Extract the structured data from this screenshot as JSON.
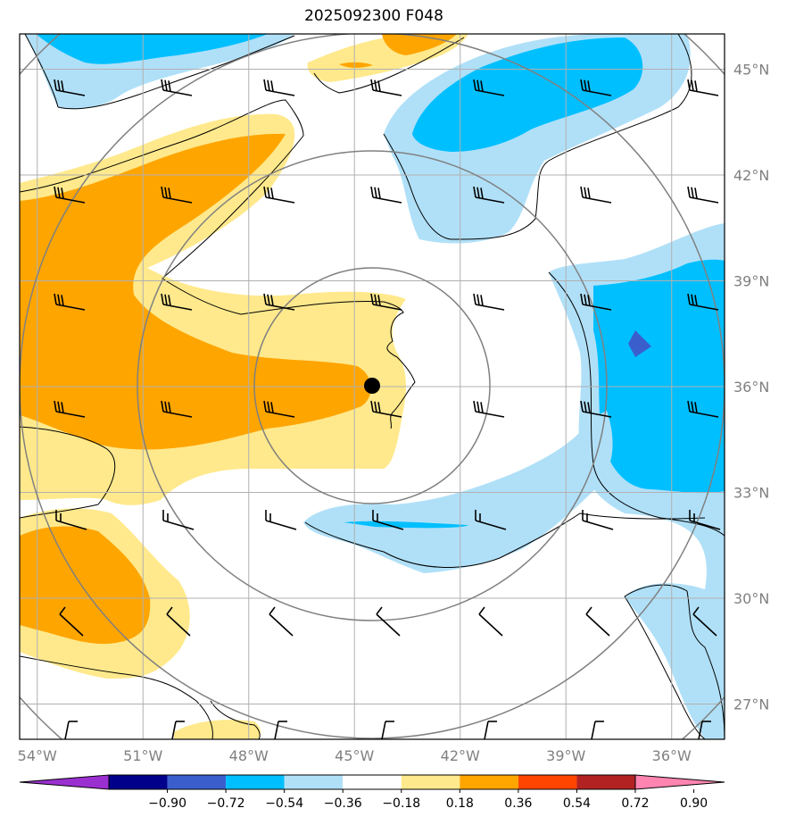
{
  "title": "2025092300 F048",
  "map": {
    "lon_labels": [
      "54°W",
      "51°W",
      "48°W",
      "45°W",
      "42°W",
      "39°W",
      "36°W"
    ],
    "lat_labels": [
      "45°N",
      "42°N",
      "39°N",
      "36°N",
      "33°N",
      "30°N",
      "27°N"
    ],
    "grid_lons": [
      -54,
      -51,
      -48,
      -45,
      -42,
      -39,
      -36
    ],
    "grid_lats": [
      45,
      42,
      39,
      36,
      33,
      30,
      27
    ],
    "extent": {
      "lon_min": -54.5,
      "lon_max": -34.5,
      "lat_min": 26.0,
      "lat_max": 46.0
    },
    "center_marker": {
      "lon": -44.5,
      "lat": 35.9
    },
    "range_rings": "grey concentric circles centred on marker",
    "wind_barbs": "black barbs on 3-degree grid"
  },
  "colorbar": {
    "ticks": [
      "−0.90",
      "−0.72",
      "−0.54",
      "−0.36",
      "−0.18",
      "0.18",
      "0.36",
      "0.54",
      "0.72",
      "0.90"
    ],
    "colors": [
      "#9b30d0",
      "#00008b",
      "#3a5fcd",
      "#00bfff",
      "#b0e0f8",
      "#ffffff",
      "#ffe98c",
      "#ffa500",
      "#ff4500",
      "#b22222",
      "#ff85b0"
    ]
  },
  "fill_colors": {
    "light_yellow": "#ffe98c",
    "orange": "#ffa500",
    "light_blue": "#b0e0f8",
    "blue": "#00bfff",
    "royal_blue": "#3a5fcd"
  }
}
